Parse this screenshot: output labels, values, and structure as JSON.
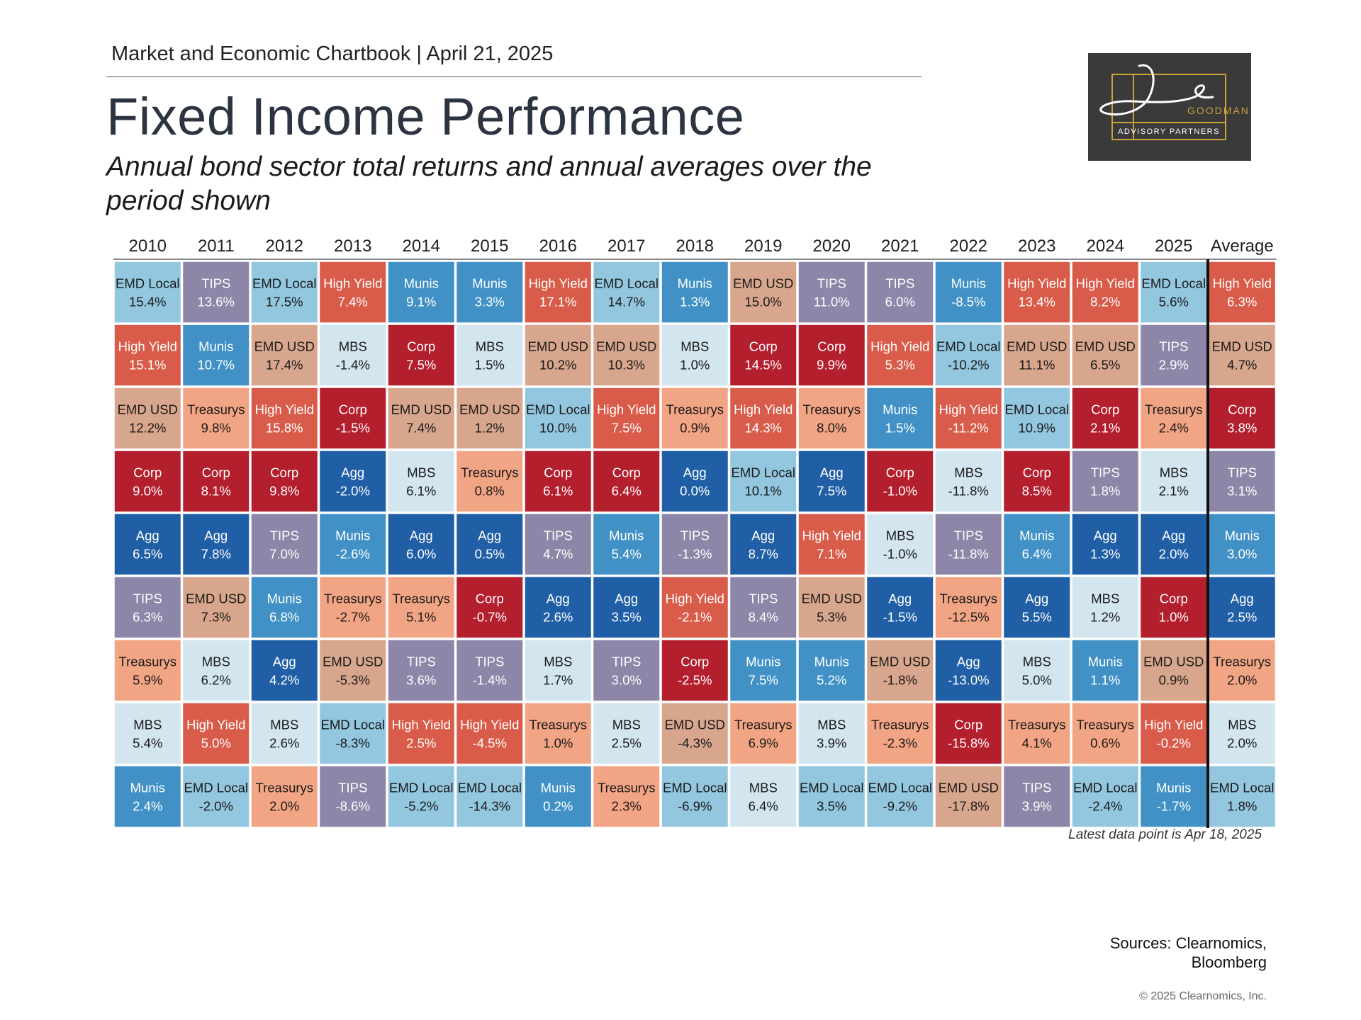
{
  "header": {
    "line": "Market and Economic Chartbook | April 21, 2025",
    "title": "Fixed Income Performance",
    "subtitle": "Annual bond sector total returns and annual averages over the period shown"
  },
  "logo": {
    "script_text": "Jon C.",
    "name": "GOODMAN",
    "tagline": "ADVISORY PARTNERS",
    "bg_color": "#3a3a3a",
    "accent_color": "#c9a23a"
  },
  "footer": {
    "note": "Latest data point is Apr 18, 2025",
    "sources_line1": "Sources: Clearnomics,",
    "sources_line2": "Bloomberg",
    "copyright": "© 2025 Clearnomics, Inc."
  },
  "colors": {
    "EMD Local": "#93c6df",
    "TIPS": "#8d86a8",
    "High Yield": "#d95c4a",
    "Munis": "#4191c6",
    "EMD USD": "#d8a68c",
    "Corp": "#b41f2e",
    "MBS": "#d3e5ef",
    "Treasurys": "#f2a584",
    "Agg": "#205fa6"
  },
  "text_colors": {
    "EMD Local": "#1a1a1a",
    "TIPS": "#ffffff",
    "High Yield": "#ffffff",
    "Munis": "#ffffff",
    "EMD USD": "#1a1a1a",
    "Corp": "#ffffff",
    "MBS": "#1a1a1a",
    "Treasurys": "#1a1a1a",
    "Agg": "#ffffff"
  },
  "chart_data": {
    "type": "table",
    "columns": [
      "2010",
      "2011",
      "2012",
      "2013",
      "2014",
      "2015",
      "2016",
      "2017",
      "2018",
      "2019",
      "2020",
      "2021",
      "2022",
      "2023",
      "2024",
      "2025",
      "Average"
    ],
    "rows": [
      [
        [
          "EMD Local",
          "15.4%"
        ],
        [
          "TIPS",
          "13.6%"
        ],
        [
          "EMD Local",
          "17.5%"
        ],
        [
          "High Yield",
          "7.4%"
        ],
        [
          "Munis",
          "9.1%"
        ],
        [
          "Munis",
          "3.3%"
        ],
        [
          "High Yield",
          "17.1%"
        ],
        [
          "EMD Local",
          "14.7%"
        ],
        [
          "Munis",
          "1.3%"
        ],
        [
          "EMD USD",
          "15.0%"
        ],
        [
          "TIPS",
          "11.0%"
        ],
        [
          "TIPS",
          "6.0%"
        ],
        [
          "Munis",
          "-8.5%"
        ],
        [
          "High Yield",
          "13.4%"
        ],
        [
          "High Yield",
          "8.2%"
        ],
        [
          "EMD Local",
          "5.6%"
        ],
        [
          "High Yield",
          "6.3%"
        ]
      ],
      [
        [
          "High Yield",
          "15.1%"
        ],
        [
          "Munis",
          "10.7%"
        ],
        [
          "EMD USD",
          "17.4%"
        ],
        [
          "MBS",
          "-1.4%"
        ],
        [
          "Corp",
          "7.5%"
        ],
        [
          "MBS",
          "1.5%"
        ],
        [
          "EMD USD",
          "10.2%"
        ],
        [
          "EMD USD",
          "10.3%"
        ],
        [
          "MBS",
          "1.0%"
        ],
        [
          "Corp",
          "14.5%"
        ],
        [
          "Corp",
          "9.9%"
        ],
        [
          "High Yield",
          "5.3%"
        ],
        [
          "EMD Local",
          "-10.2%"
        ],
        [
          "EMD USD",
          "11.1%"
        ],
        [
          "EMD USD",
          "6.5%"
        ],
        [
          "TIPS",
          "2.9%"
        ],
        [
          "EMD USD",
          "4.7%"
        ]
      ],
      [
        [
          "EMD USD",
          "12.2%"
        ],
        [
          "Treasurys",
          "9.8%"
        ],
        [
          "High Yield",
          "15.8%"
        ],
        [
          "Corp",
          "-1.5%"
        ],
        [
          "EMD USD",
          "7.4%"
        ],
        [
          "EMD USD",
          "1.2%"
        ],
        [
          "EMD Local",
          "10.0%"
        ],
        [
          "High Yield",
          "7.5%"
        ],
        [
          "Treasurys",
          "0.9%"
        ],
        [
          "High Yield",
          "14.3%"
        ],
        [
          "Treasurys",
          "8.0%"
        ],
        [
          "Munis",
          "1.5%"
        ],
        [
          "High Yield",
          "-11.2%"
        ],
        [
          "EMD Local",
          "10.9%"
        ],
        [
          "Corp",
          "2.1%"
        ],
        [
          "Treasurys",
          "2.4%"
        ],
        [
          "Corp",
          "3.8%"
        ]
      ],
      [
        [
          "Corp",
          "9.0%"
        ],
        [
          "Corp",
          "8.1%"
        ],
        [
          "Corp",
          "9.8%"
        ],
        [
          "Agg",
          "-2.0%"
        ],
        [
          "MBS",
          "6.1%"
        ],
        [
          "Treasurys",
          "0.8%"
        ],
        [
          "Corp",
          "6.1%"
        ],
        [
          "Corp",
          "6.4%"
        ],
        [
          "Agg",
          "0.0%"
        ],
        [
          "EMD Local",
          "10.1%"
        ],
        [
          "Agg",
          "7.5%"
        ],
        [
          "Corp",
          "-1.0%"
        ],
        [
          "MBS",
          "-11.8%"
        ],
        [
          "Corp",
          "8.5%"
        ],
        [
          "TIPS",
          "1.8%"
        ],
        [
          "MBS",
          "2.1%"
        ],
        [
          "TIPS",
          "3.1%"
        ]
      ],
      [
        [
          "Agg",
          "6.5%"
        ],
        [
          "Agg",
          "7.8%"
        ],
        [
          "TIPS",
          "7.0%"
        ],
        [
          "Munis",
          "-2.6%"
        ],
        [
          "Agg",
          "6.0%"
        ],
        [
          "Agg",
          "0.5%"
        ],
        [
          "TIPS",
          "4.7%"
        ],
        [
          "Munis",
          "5.4%"
        ],
        [
          "TIPS",
          "-1.3%"
        ],
        [
          "Agg",
          "8.7%"
        ],
        [
          "High Yield",
          "7.1%"
        ],
        [
          "MBS",
          "-1.0%"
        ],
        [
          "TIPS",
          "-11.8%"
        ],
        [
          "Munis",
          "6.4%"
        ],
        [
          "Agg",
          "1.3%"
        ],
        [
          "Agg",
          "2.0%"
        ],
        [
          "Munis",
          "3.0%"
        ]
      ],
      [
        [
          "TIPS",
          "6.3%"
        ],
        [
          "EMD USD",
          "7.3%"
        ],
        [
          "Munis",
          "6.8%"
        ],
        [
          "Treasurys",
          "-2.7%"
        ],
        [
          "Treasurys",
          "5.1%"
        ],
        [
          "Corp",
          "-0.7%"
        ],
        [
          "Agg",
          "2.6%"
        ],
        [
          "Agg",
          "3.5%"
        ],
        [
          "High Yield",
          "-2.1%"
        ],
        [
          "TIPS",
          "8.4%"
        ],
        [
          "EMD USD",
          "5.3%"
        ],
        [
          "Agg",
          "-1.5%"
        ],
        [
          "Treasurys",
          "-12.5%"
        ],
        [
          "Agg",
          "5.5%"
        ],
        [
          "MBS",
          "1.2%"
        ],
        [
          "Corp",
          "1.0%"
        ],
        [
          "Agg",
          "2.5%"
        ]
      ],
      [
        [
          "Treasurys",
          "5.9%"
        ],
        [
          "MBS",
          "6.2%"
        ],
        [
          "Agg",
          "4.2%"
        ],
        [
          "EMD USD",
          "-5.3%"
        ],
        [
          "TIPS",
          "3.6%"
        ],
        [
          "TIPS",
          "-1.4%"
        ],
        [
          "MBS",
          "1.7%"
        ],
        [
          "TIPS",
          "3.0%"
        ],
        [
          "Corp",
          "-2.5%"
        ],
        [
          "Munis",
          "7.5%"
        ],
        [
          "Munis",
          "5.2%"
        ],
        [
          "EMD USD",
          "-1.8%"
        ],
        [
          "Agg",
          "-13.0%"
        ],
        [
          "MBS",
          "5.0%"
        ],
        [
          "Munis",
          "1.1%"
        ],
        [
          "EMD USD",
          "0.9%"
        ],
        [
          "Treasurys",
          "2.0%"
        ]
      ],
      [
        [
          "MBS",
          "5.4%"
        ],
        [
          "High Yield",
          "5.0%"
        ],
        [
          "MBS",
          "2.6%"
        ],
        [
          "EMD Local",
          "-8.3%"
        ],
        [
          "High Yield",
          "2.5%"
        ],
        [
          "High Yield",
          "-4.5%"
        ],
        [
          "Treasurys",
          "1.0%"
        ],
        [
          "MBS",
          "2.5%"
        ],
        [
          "EMD USD",
          "-4.3%"
        ],
        [
          "Treasurys",
          "6.9%"
        ],
        [
          "MBS",
          "3.9%"
        ],
        [
          "Treasurys",
          "-2.3%"
        ],
        [
          "Corp",
          "-15.8%"
        ],
        [
          "Treasurys",
          "4.1%"
        ],
        [
          "Treasurys",
          "0.6%"
        ],
        [
          "High Yield",
          "-0.2%"
        ],
        [
          "MBS",
          "2.0%"
        ]
      ],
      [
        [
          "Munis",
          "2.4%"
        ],
        [
          "EMD Local",
          "-2.0%"
        ],
        [
          "Treasurys",
          "2.0%"
        ],
        [
          "TIPS",
          "-8.6%"
        ],
        [
          "EMD Local",
          "-5.2%"
        ],
        [
          "EMD Local",
          "-14.3%"
        ],
        [
          "Munis",
          "0.2%"
        ],
        [
          "Treasurys",
          "2.3%"
        ],
        [
          "EMD Local",
          "-6.9%"
        ],
        [
          "MBS",
          "6.4%"
        ],
        [
          "EMD Local",
          "3.5%"
        ],
        [
          "EMD Local",
          "-9.2%"
        ],
        [
          "EMD USD",
          "-17.8%"
        ],
        [
          "TIPS",
          "3.9%"
        ],
        [
          "EMD Local",
          "-2.4%"
        ],
        [
          "Munis",
          "-1.7%"
        ],
        [
          "EMD Local",
          "1.8%"
        ]
      ]
    ]
  }
}
